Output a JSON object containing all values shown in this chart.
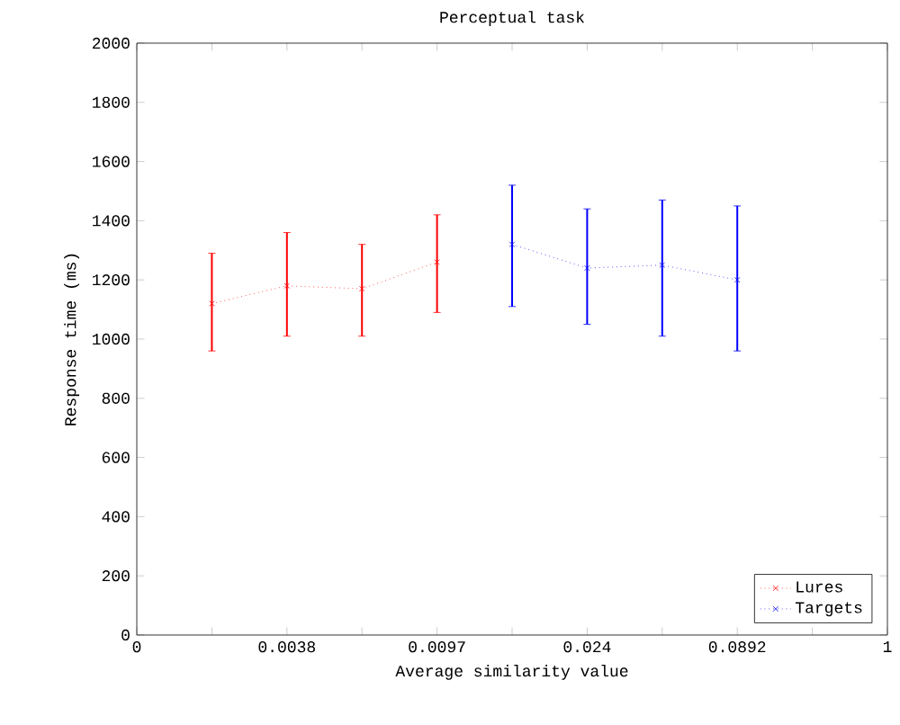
{
  "chart_data": {
    "type": "line",
    "title": "Perceptual task",
    "xlabel": "Average similarity value",
    "ylabel": "Response time (ms)",
    "categories": [
      "0",
      null,
      "0.0038",
      null,
      "0.0097",
      null,
      "0.024",
      null,
      "0.0892",
      null,
      "1"
    ],
    "ylim": [
      0,
      2000
    ],
    "yticks": [
      0,
      200,
      400,
      600,
      800,
      1000,
      1200,
      1400,
      1600,
      1800,
      2000
    ],
    "series": [
      {
        "name": "Lures",
        "color": "#ff0000",
        "values": [
          null,
          1120,
          1180,
          1170,
          1260,
          null,
          null,
          null,
          null,
          null,
          null
        ],
        "errors": [
          null,
          [
            960,
            1290
          ],
          [
            1010,
            1360
          ],
          [
            1010,
            1320
          ],
          [
            1090,
            1420
          ],
          null,
          null,
          null,
          null,
          null,
          null
        ]
      },
      {
        "name": "Targets",
        "color": "#0000ff",
        "values": [
          null,
          null,
          null,
          null,
          null,
          1320,
          1240,
          1250,
          1200,
          null,
          null
        ],
        "errors": [
          null,
          null,
          null,
          null,
          null,
          [
            1110,
            1520
          ],
          [
            1050,
            1440
          ],
          [
            1010,
            1470
          ],
          [
            960,
            1450
          ],
          null,
          null
        ]
      }
    ],
    "marker": "cross",
    "line_style": "dotted",
    "legend": "bottom right",
    "grid": false
  }
}
